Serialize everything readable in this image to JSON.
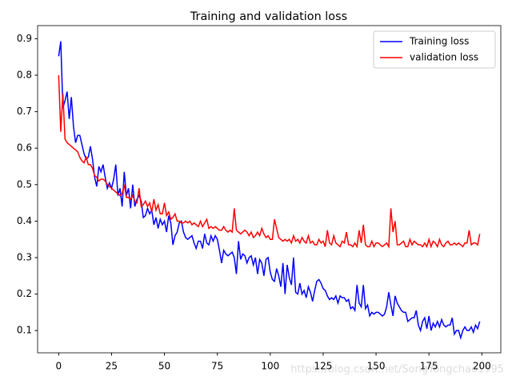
{
  "chart_data": {
    "type": "line",
    "title": "Training and validation loss",
    "x": [
      0,
      1,
      2,
      3,
      4,
      5,
      6,
      7,
      8,
      9,
      10,
      11,
      12,
      13,
      14,
      15,
      16,
      17,
      18,
      19,
      20,
      21,
      22,
      23,
      24,
      25,
      26,
      27,
      28,
      29,
      30,
      31,
      32,
      33,
      34,
      35,
      36,
      37,
      38,
      39,
      40,
      41,
      42,
      43,
      44,
      45,
      46,
      47,
      48,
      49,
      50,
      51,
      52,
      53,
      54,
      55,
      56,
      57,
      58,
      59,
      60,
      61,
      62,
      63,
      64,
      65,
      66,
      67,
      68,
      69,
      70,
      71,
      72,
      73,
      74,
      75,
      76,
      77,
      78,
      79,
      80,
      81,
      82,
      83,
      84,
      85,
      86,
      87,
      88,
      89,
      90,
      91,
      92,
      93,
      94,
      95,
      96,
      97,
      98,
      99,
      100,
      101,
      102,
      103,
      104,
      105,
      106,
      107,
      108,
      109,
      110,
      111,
      112,
      113,
      114,
      115,
      116,
      117,
      118,
      119,
      120,
      121,
      122,
      123,
      124,
      125,
      126,
      127,
      128,
      129,
      130,
      131,
      132,
      133,
      134,
      135,
      136,
      137,
      138,
      139,
      140,
      141,
      142,
      143,
      144,
      145,
      146,
      147,
      148,
      149,
      150,
      151,
      152,
      153,
      154,
      155,
      156,
      157,
      158,
      159,
      160,
      161,
      162,
      163,
      164,
      165,
      166,
      167,
      168,
      169,
      170,
      171,
      172,
      173,
      174,
      175,
      176,
      177,
      178,
      179,
      180,
      181,
      182,
      183,
      184,
      185,
      186,
      187,
      188,
      189,
      190,
      191,
      192,
      193,
      194,
      195,
      196,
      197,
      198,
      199
    ],
    "series": [
      {
        "name": "Training loss",
        "color": "#0000ff",
        "values": [
          0.852,
          0.893,
          0.71,
          0.73,
          0.755,
          0.68,
          0.74,
          0.66,
          0.615,
          0.635,
          0.635,
          0.61,
          0.585,
          0.57,
          0.575,
          0.605,
          0.57,
          0.52,
          0.495,
          0.55,
          0.535,
          0.555,
          0.52,
          0.49,
          0.505,
          0.49,
          0.515,
          0.555,
          0.47,
          0.49,
          0.44,
          0.535,
          0.47,
          0.49,
          0.435,
          0.5,
          0.44,
          0.46,
          0.47,
          0.455,
          0.41,
          0.415,
          0.435,
          0.42,
          0.43,
          0.39,
          0.41,
          0.38,
          0.405,
          0.39,
          0.4,
          0.37,
          0.415,
          0.395,
          0.335,
          0.36,
          0.37,
          0.395,
          0.4,
          0.37,
          0.355,
          0.35,
          0.355,
          0.36,
          0.34,
          0.325,
          0.345,
          0.345,
          0.325,
          0.365,
          0.34,
          0.335,
          0.36,
          0.345,
          0.36,
          0.35,
          0.32,
          0.285,
          0.32,
          0.31,
          0.305,
          0.31,
          0.315,
          0.3,
          0.255,
          0.345,
          0.295,
          0.31,
          0.305,
          0.285,
          0.3,
          0.305,
          0.28,
          0.3,
          0.255,
          0.295,
          0.285,
          0.25,
          0.295,
          0.3,
          0.26,
          0.24,
          0.235,
          0.27,
          0.25,
          0.22,
          0.285,
          0.2,
          0.28,
          0.245,
          0.225,
          0.3,
          0.205,
          0.2,
          0.23,
          0.2,
          0.21,
          0.19,
          0.22,
          0.205,
          0.18,
          0.21,
          0.235,
          0.24,
          0.23,
          0.215,
          0.21,
          0.195,
          0.185,
          0.19,
          0.185,
          0.195,
          0.175,
          0.195,
          0.19,
          0.19,
          0.18,
          0.185,
          0.16,
          0.165,
          0.155,
          0.225,
          0.175,
          0.165,
          0.225,
          0.16,
          0.17,
          0.14,
          0.15,
          0.145,
          0.15,
          0.15,
          0.145,
          0.14,
          0.145,
          0.165,
          0.205,
          0.17,
          0.14,
          0.195,
          0.175,
          0.165,
          0.155,
          0.15,
          0.15,
          0.125,
          0.13,
          0.135,
          0.135,
          0.155,
          0.115,
          0.1,
          0.125,
          0.135,
          0.105,
          0.14,
          0.1,
          0.12,
          0.11,
          0.125,
          0.11,
          0.13,
          0.115,
          0.11,
          0.115,
          0.115,
          0.135,
          0.09,
          0.1,
          0.1,
          0.08,
          0.1,
          0.11,
          0.1,
          0.1,
          0.11,
          0.095,
          0.115,
          0.105,
          0.125
        ]
      },
      {
        "name": "validation loss",
        "color": "#ff0000",
        "values": [
          0.8,
          0.645,
          0.75,
          0.625,
          0.615,
          0.61,
          0.605,
          0.6,
          0.595,
          0.59,
          0.575,
          0.565,
          0.56,
          0.575,
          0.555,
          0.555,
          0.545,
          0.525,
          0.52,
          0.51,
          0.515,
          0.515,
          0.51,
          0.5,
          0.495,
          0.49,
          0.485,
          0.48,
          0.475,
          0.47,
          0.475,
          0.5,
          0.465,
          0.465,
          0.46,
          0.47,
          0.455,
          0.45,
          0.49,
          0.44,
          0.445,
          0.455,
          0.44,
          0.45,
          0.425,
          0.46,
          0.43,
          0.445,
          0.42,
          0.42,
          0.45,
          0.415,
          0.425,
          0.405,
          0.41,
          0.42,
          0.4,
          0.4,
          0.395,
          0.395,
          0.4,
          0.395,
          0.4,
          0.39,
          0.395,
          0.39,
          0.385,
          0.4,
          0.385,
          0.395,
          0.405,
          0.38,
          0.385,
          0.38,
          0.385,
          0.38,
          0.375,
          0.375,
          0.385,
          0.375,
          0.37,
          0.375,
          0.37,
          0.435,
          0.375,
          0.37,
          0.365,
          0.37,
          0.375,
          0.37,
          0.36,
          0.37,
          0.355,
          0.36,
          0.37,
          0.36,
          0.38,
          0.365,
          0.355,
          0.36,
          0.35,
          0.35,
          0.405,
          0.38,
          0.355,
          0.35,
          0.345,
          0.35,
          0.345,
          0.35,
          0.34,
          0.36,
          0.345,
          0.35,
          0.34,
          0.355,
          0.345,
          0.34,
          0.36,
          0.34,
          0.345,
          0.335,
          0.335,
          0.35,
          0.34,
          0.345,
          0.33,
          0.375,
          0.34,
          0.335,
          0.36,
          0.34,
          0.335,
          0.33,
          0.345,
          0.34,
          0.37,
          0.335,
          0.335,
          0.33,
          0.34,
          0.33,
          0.375,
          0.34,
          0.39,
          0.335,
          0.33,
          0.33,
          0.345,
          0.33,
          0.34,
          0.34,
          0.335,
          0.33,
          0.335,
          0.34,
          0.33,
          0.435,
          0.37,
          0.4,
          0.335,
          0.335,
          0.34,
          0.345,
          0.33,
          0.33,
          0.35,
          0.335,
          0.345,
          0.34,
          0.335,
          0.335,
          0.33,
          0.34,
          0.33,
          0.35,
          0.33,
          0.345,
          0.34,
          0.33,
          0.35,
          0.335,
          0.33,
          0.34,
          0.345,
          0.335,
          0.335,
          0.34,
          0.335,
          0.34,
          0.335,
          0.33,
          0.34,
          0.34,
          0.375,
          0.335,
          0.34,
          0.34,
          0.335,
          0.365
        ]
      }
    ],
    "xlim": [
      -9.95,
      208.95
    ],
    "xticks": [
      0,
      25,
      50,
      75,
      100,
      125,
      150,
      175,
      200
    ],
    "ylim": [
      0.039,
      0.936
    ],
    "yticks": [
      0.1,
      0.2,
      0.3,
      0.4,
      0.5,
      0.6,
      0.7,
      0.8,
      0.9
    ],
    "legend": "upper right",
    "grid": false,
    "watermark": "https://blog.csdn.net/SongYongchao1995"
  }
}
